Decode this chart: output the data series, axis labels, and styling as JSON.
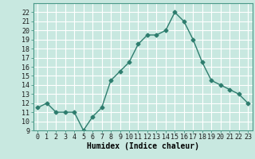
{
  "x": [
    0,
    1,
    2,
    3,
    4,
    5,
    6,
    7,
    8,
    9,
    10,
    11,
    12,
    13,
    14,
    15,
    16,
    17,
    18,
    19,
    20,
    21,
    22,
    23
  ],
  "y": [
    11.5,
    12.0,
    11.0,
    11.0,
    11.0,
    9.0,
    10.5,
    11.5,
    14.5,
    15.5,
    16.5,
    18.5,
    19.5,
    19.5,
    20.0,
    22.0,
    21.0,
    19.0,
    16.5,
    14.5,
    14.0,
    13.5,
    13.0,
    12.0
  ],
  "line_color": "#2e7d6e",
  "marker": "D",
  "marker_size": 2.5,
  "bg_color": "#c8e8e0",
  "grid_color": "#ffffff",
  "xlabel": "Humidex (Indice chaleur)",
  "ylim": [
    9,
    23
  ],
  "xlim": [
    -0.5,
    23.5
  ],
  "yticks": [
    9,
    10,
    11,
    12,
    13,
    14,
    15,
    16,
    17,
    18,
    19,
    20,
    21,
    22
  ],
  "xtick_labels": [
    "0",
    "1",
    "2",
    "3",
    "4",
    "5",
    "6",
    "7",
    "8",
    "9",
    "10",
    "11",
    "12",
    "13",
    "14",
    "15",
    "16",
    "17",
    "18",
    "19",
    "20",
    "21",
    "22",
    "23"
  ],
  "xlabel_fontsize": 7,
  "tick_fontsize": 6,
  "line_width": 1.0
}
